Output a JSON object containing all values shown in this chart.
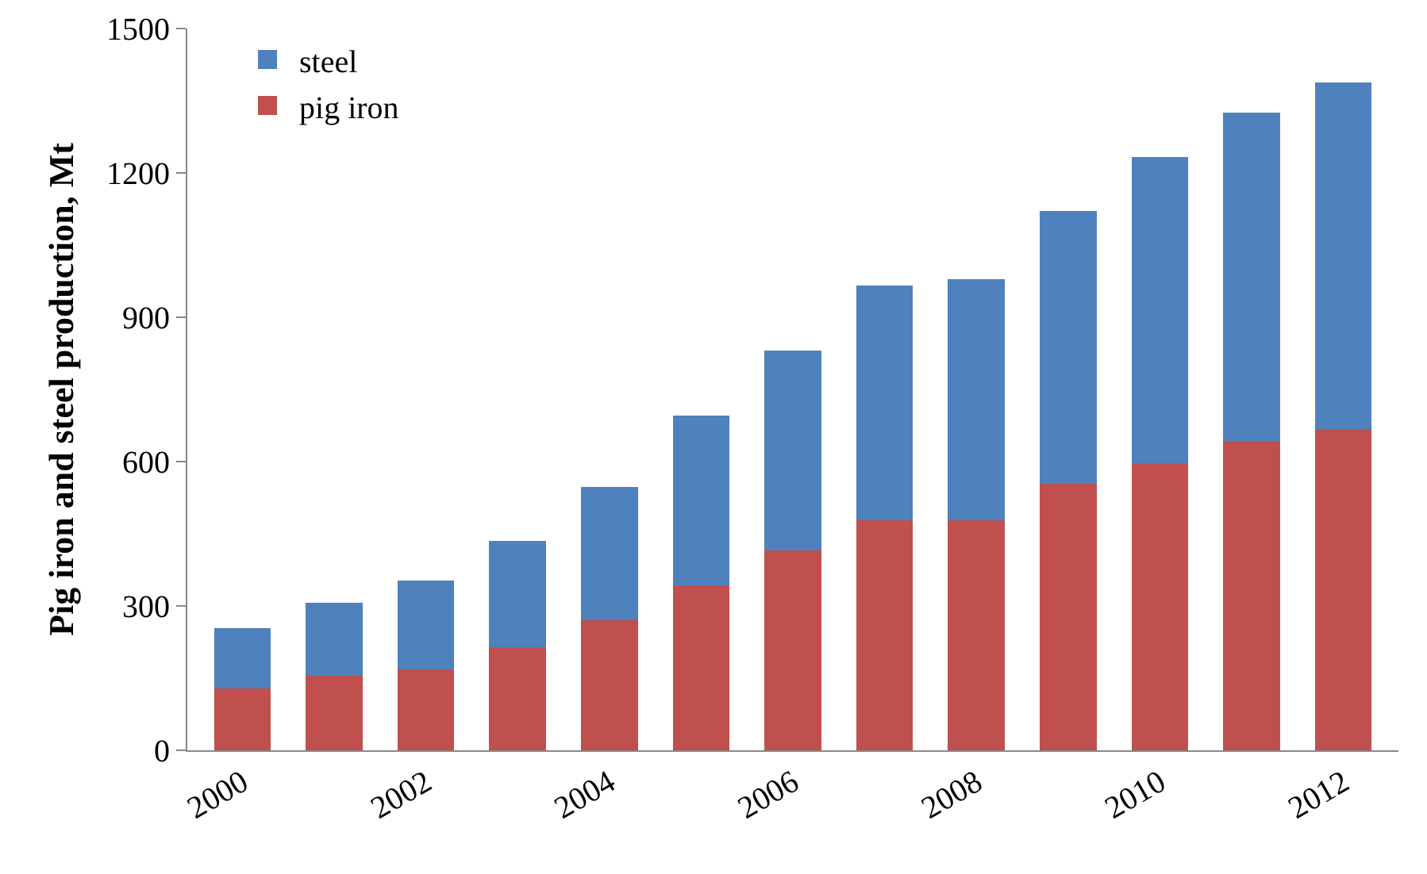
{
  "chart_data": {
    "type": "bar",
    "ylabel": "Pig iron and steel production, Mt",
    "categories": [
      "2000",
      null,
      "2002",
      null,
      "2004",
      null,
      "2006",
      null,
      "2008",
      null,
      "2010",
      null,
      "2012"
    ],
    "stacked": true,
    "series": [
      {
        "name": "pig iron",
        "color": "#c0504d",
        "values": [
          129,
          155,
          168,
          214,
          270,
          343,
          415,
          478,
          478,
          554,
          597,
          643,
          666
        ]
      },
      {
        "name": "steel",
        "color": "#4f81bd",
        "values": [
          125,
          152,
          185,
          221,
          277,
          353,
          416,
          488,
          501,
          567,
          636,
          682,
          722
        ]
      }
    ],
    "ylim": [
      0,
      1500
    ],
    "yticks": [
      0,
      300,
      600,
      900,
      1200,
      1500
    ],
    "grid": false,
    "legend": "top left"
  }
}
